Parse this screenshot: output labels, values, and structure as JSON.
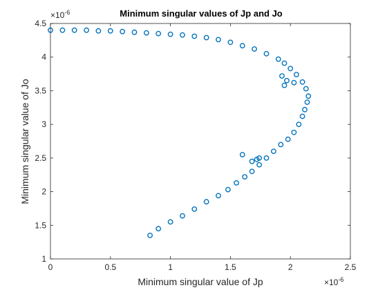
{
  "chart_data": {
    "type": "scatter",
    "title": "Minimum singular values of Jp and Jo",
    "xlabel": "Minimum singular value of Jp",
    "ylabel": "Minimum singular value of Jo",
    "xlim": [
      0,
      2.5
    ],
    "ylim": [
      1,
      4.5
    ],
    "x_exponent_label": "×10",
    "x_exponent": "-6",
    "y_exponent_label": "×10",
    "y_exponent": "-6",
    "xticks": [
      "0",
      "0.5",
      "1",
      "1.5",
      "2",
      "2.5"
    ],
    "yticks": [
      "1",
      "1.5",
      "2",
      "2.5",
      "3",
      "3.5",
      "4",
      "4.5"
    ],
    "xtick_values": [
      0,
      0.5,
      1,
      1.5,
      2,
      2.5
    ],
    "ytick_values": [
      1,
      1.5,
      2,
      2.5,
      3,
      3.5,
      4,
      4.5
    ],
    "grid": false,
    "marker": "open-circle",
    "color": "#0072BD",
    "series": [
      {
        "x": [
          0.0,
          0.1,
          0.2,
          0.3,
          0.4,
          0.5,
          0.6,
          0.7,
          0.8,
          0.9,
          1.0,
          1.1,
          1.2,
          1.3,
          1.4,
          1.5,
          1.6,
          1.7,
          1.8,
          1.9,
          1.95,
          2.0,
          2.05,
          2.1,
          2.13,
          2.15,
          2.14,
          2.12,
          2.1,
          2.07,
          2.03,
          1.98,
          1.92,
          1.86,
          1.8,
          1.74,
          1.68,
          1.62,
          1.55,
          1.48,
          1.4,
          1.3,
          1.2,
          1.1,
          1.0,
          0.9,
          0.83,
          1.95,
          1.93,
          1.97,
          2.03,
          1.72,
          1.74,
          1.68,
          1.6
        ],
        "y": [
          4.4,
          4.4,
          4.4,
          4.4,
          4.39,
          4.39,
          4.38,
          4.37,
          4.36,
          4.35,
          4.34,
          4.33,
          4.31,
          4.29,
          4.26,
          4.22,
          4.17,
          4.12,
          4.05,
          3.97,
          3.91,
          3.83,
          3.74,
          3.63,
          3.53,
          3.42,
          3.33,
          3.22,
          3.12,
          3.0,
          2.88,
          2.78,
          2.7,
          2.6,
          2.5,
          2.4,
          2.3,
          2.22,
          2.13,
          2.03,
          1.94,
          1.85,
          1.74,
          1.64,
          1.55,
          1.45,
          1.35,
          3.58,
          3.72,
          3.65,
          3.62,
          2.48,
          2.5,
          2.45,
          2.55
        ]
      }
    ]
  }
}
